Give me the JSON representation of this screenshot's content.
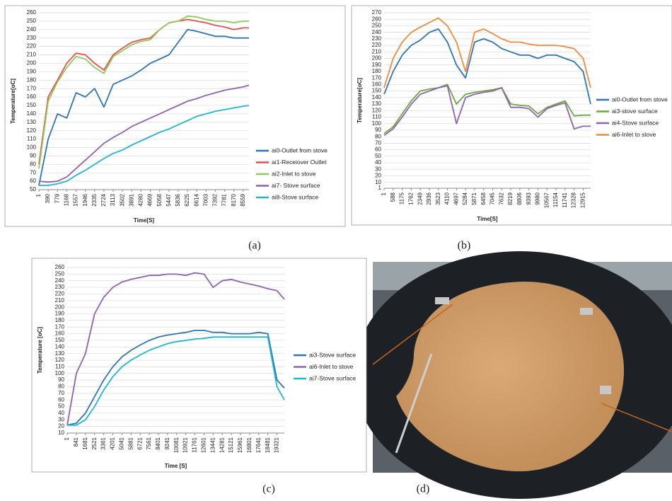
{
  "chart_data": [
    {
      "type": "line",
      "caption": "(a)",
      "y_label": "Temperature[oC]",
      "x_label": "Time[S]",
      "xlim": [
        1,
        8800
      ],
      "ylim": [
        50,
        260
      ],
      "xticks": [
        1,
        390,
        779,
        1168,
        1557,
        1946,
        2335,
        2724,
        3113,
        3502,
        3891,
        4280,
        4669,
        5058,
        5447,
        5836,
        6225,
        6614,
        7003,
        7392,
        7781,
        8170,
        8559
      ],
      "yticks": [
        50,
        60,
        70,
        80,
        90,
        100,
        110,
        120,
        130,
        140,
        150,
        160,
        170,
        180,
        190,
        200,
        210,
        220,
        230,
        240,
        250,
        260
      ],
      "grid": true,
      "x": [
        1,
        390,
        779,
        1168,
        1557,
        1946,
        2335,
        2724,
        3113,
        3502,
        3891,
        4280,
        4669,
        5058,
        5447,
        5836,
        6225,
        6614,
        7003,
        7392,
        7781,
        8170,
        8559,
        8800
      ],
      "series": [
        {
          "name": "ai0-Outlet from stove",
          "color": "#2e75b6",
          "values": [
            55,
            110,
            140,
            135,
            165,
            160,
            170,
            148,
            175,
            180,
            185,
            192,
            200,
            205,
            210,
            225,
            240,
            238,
            235,
            232,
            232,
            230,
            230,
            230
          ]
        },
        {
          "name": "ai1-Receiover Outlet",
          "color": "#e8504f",
          "values": [
            80,
            160,
            180,
            200,
            212,
            210,
            200,
            192,
            210,
            218,
            225,
            228,
            230,
            240,
            248,
            250,
            252,
            250,
            248,
            245,
            243,
            240,
            242,
            242
          ]
        },
        {
          "name": "ai2-Inlet to stove",
          "color": "#8fc95a",
          "values": [
            75,
            155,
            178,
            195,
            208,
            205,
            195,
            188,
            208,
            215,
            222,
            226,
            228,
            240,
            248,
            250,
            256,
            255,
            252,
            250,
            250,
            248,
            250,
            250
          ]
        },
        {
          "name": "ai7- Stove surface",
          "color": "#8e62b5",
          "values": [
            60,
            59,
            60,
            65,
            75,
            85,
            95,
            105,
            112,
            118,
            125,
            130,
            135,
            140,
            145,
            150,
            155,
            158,
            162,
            165,
            168,
            170,
            172,
            174
          ]
        },
        {
          "name": "ai8-Stove surface",
          "color": "#1fb6cf",
          "values": [
            55,
            55,
            57,
            60,
            67,
            73,
            80,
            87,
            93,
            97,
            103,
            108,
            113,
            118,
            122,
            127,
            132,
            137,
            140,
            143,
            145,
            147,
            149,
            150
          ]
        }
      ]
    },
    {
      "type": "line",
      "caption": "(b)",
      "y_label": "Temperature[oC]",
      "x_label": "Time[S]",
      "xlim": [
        1,
        13400
      ],
      "ylim": [
        1,
        270
      ],
      "xticks": [
        1,
        588,
        1175,
        1762,
        2349,
        2936,
        3523,
        4110,
        4697,
        5284,
        5871,
        6458,
        7045,
        7632,
        8219,
        8806,
        9393,
        9980,
        10567,
        11154,
        11741,
        12328,
        12915
      ],
      "yticks": [
        1,
        10,
        20,
        30,
        40,
        50,
        60,
        70,
        80,
        90,
        100,
        110,
        120,
        130,
        140,
        150,
        160,
        170,
        180,
        190,
        200,
        210,
        220,
        230,
        240,
        250,
        260,
        270
      ],
      "grid": true,
      "x": [
        1,
        588,
        1175,
        1762,
        2349,
        2936,
        3523,
        4110,
        4697,
        5284,
        5871,
        6458,
        7045,
        7632,
        8219,
        8806,
        9393,
        9980,
        10567,
        11154,
        11741,
        12328,
        12915,
        13400
      ],
      "series": [
        {
          "name": "ai0-Outlet from stove",
          "color": "#2e75b6",
          "values": [
            145,
            180,
            205,
            220,
            228,
            240,
            245,
            225,
            190,
            170,
            225,
            230,
            225,
            215,
            210,
            205,
            205,
            200,
            205,
            205,
            200,
            195,
            180,
            130
          ]
        },
        {
          "name": "ai3-stove surface",
          "color": "#6aaa3a",
          "values": [
            85,
            95,
            115,
            135,
            150,
            153,
            155,
            160,
            130,
            145,
            148,
            150,
            152,
            155,
            130,
            128,
            127,
            115,
            125,
            130,
            135,
            112,
            113,
            113
          ]
        },
        {
          "name": "ai4-Stove surface",
          "color": "#8e62b5",
          "values": [
            82,
            92,
            110,
            130,
            145,
            150,
            155,
            158,
            100,
            140,
            145,
            148,
            150,
            155,
            125,
            125,
            123,
            110,
            123,
            128,
            132,
            92,
            96,
            96
          ]
        },
        {
          "name": "ai6-Inlet to stove",
          "color": "#f28a3c",
          "values": [
            155,
            200,
            225,
            240,
            248,
            255,
            262,
            250,
            225,
            180,
            240,
            245,
            238,
            230,
            225,
            225,
            222,
            220,
            220,
            220,
            218,
            215,
            200,
            155
          ]
        }
      ]
    },
    {
      "type": "line",
      "caption": "(c)",
      "y_label": "Temperature [oC]",
      "x_label": "Time [S]",
      "xlim": [
        1,
        20000
      ],
      "ylim": [
        10,
        260
      ],
      "xticks": [
        1,
        841,
        1681,
        2521,
        3361,
        4201,
        5041,
        5881,
        6721,
        7561,
        8401,
        9241,
        10081,
        10921,
        11761,
        12601,
        13441,
        14281,
        15121,
        15961,
        16801,
        17641,
        18481,
        19321
      ],
      "yticks": [
        10,
        20,
        30,
        40,
        50,
        60,
        70,
        80,
        90,
        100,
        110,
        120,
        130,
        140,
        150,
        160,
        170,
        180,
        190,
        200,
        210,
        220,
        230,
        240,
        250,
        260
      ],
      "grid": true,
      "x": [
        1,
        841,
        1681,
        2521,
        3361,
        4201,
        5041,
        5881,
        6721,
        7561,
        8401,
        9241,
        10081,
        10921,
        11761,
        12601,
        13441,
        14281,
        15121,
        15961,
        16801,
        17641,
        18481,
        19321,
        20000
      ],
      "series": [
        {
          "name": "ai3-Stove surface",
          "color": "#2e75b6",
          "values": [
            22,
            25,
            40,
            65,
            90,
            110,
            125,
            135,
            143,
            150,
            155,
            158,
            160,
            162,
            165,
            165,
            162,
            162,
            160,
            160,
            160,
            162,
            160,
            90,
            78
          ]
        },
        {
          "name": "ai6-Inlet to stove",
          "color": "#8e62b5",
          "values": [
            22,
            100,
            130,
            190,
            215,
            230,
            238,
            242,
            245,
            248,
            248,
            250,
            250,
            248,
            252,
            250,
            230,
            240,
            242,
            238,
            235,
            232,
            228,
            225,
            212
          ]
        },
        {
          "name": "ai7-Stove surface",
          "color": "#1fb6cf",
          "values": [
            22,
            22,
            30,
            50,
            75,
            95,
            110,
            120,
            128,
            135,
            140,
            145,
            148,
            150,
            152,
            153,
            155,
            155,
            155,
            155,
            155,
            155,
            155,
            80,
            60
          ]
        }
      ]
    }
  ],
  "photo": {
    "caption": "(d)"
  }
}
